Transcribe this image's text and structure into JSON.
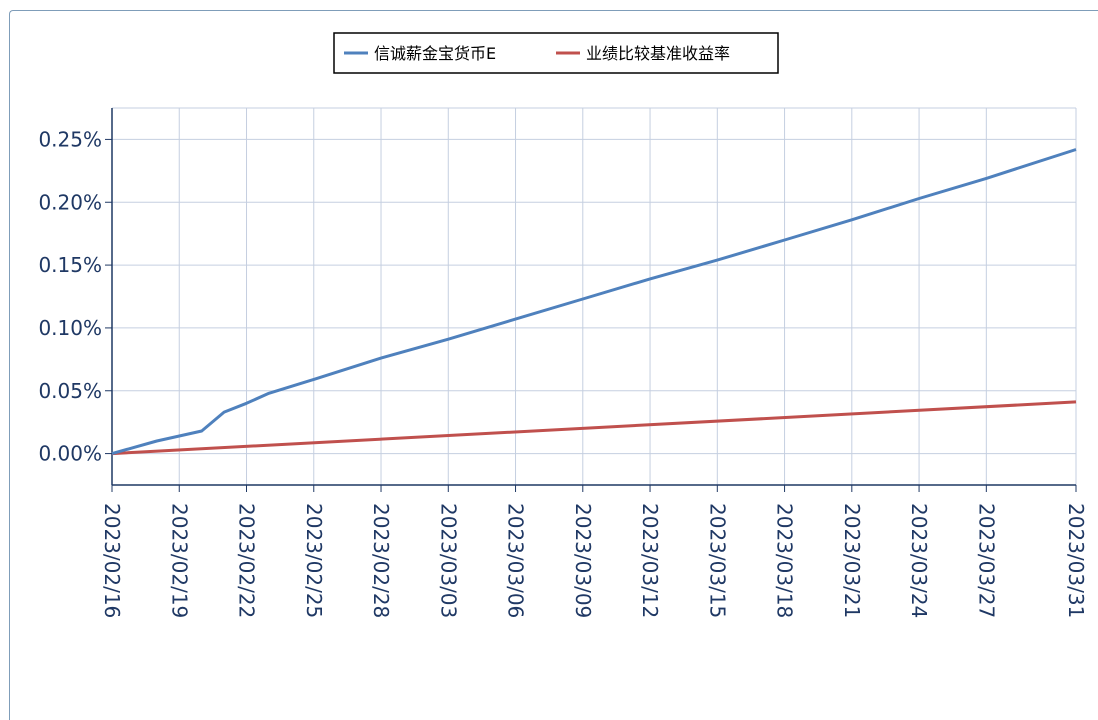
{
  "chart_data": {
    "type": "line",
    "title": "",
    "xlabel": "",
    "ylabel": "",
    "x_ticks": [
      "2023/02/16",
      "2023/02/19",
      "2023/02/22",
      "2023/02/25",
      "2023/02/28",
      "2023/03/03",
      "2023/03/06",
      "2023/03/09",
      "2023/03/12",
      "2023/03/15",
      "2023/03/18",
      "2023/03/21",
      "2023/03/24",
      "2023/03/27",
      "2023/03/31"
    ],
    "y_ticks": [
      "0.00%",
      "0.05%",
      "0.10%",
      "0.15%",
      "0.20%",
      "0.25%"
    ],
    "ylim": [
      -0.00025,
      0.00275
    ],
    "xlim": [
      "2023/02/16",
      "2023/03/31"
    ],
    "grid": true,
    "legend_position": "top-center",
    "series": [
      {
        "name": "信诚薪金宝货币E",
        "color": "#4f81bd",
        "points": [
          {
            "x": "2023/02/16",
            "y": 0.0
          },
          {
            "x": "2023/02/17",
            "y": 5e-05
          },
          {
            "x": "2023/02/18",
            "y": 0.0001
          },
          {
            "x": "2023/02/19",
            "y": 0.00014
          },
          {
            "x": "2023/02/20",
            "y": 0.00018
          },
          {
            "x": "2023/02/21",
            "y": 0.00033
          },
          {
            "x": "2023/02/22",
            "y": 0.0004
          },
          {
            "x": "2023/02/23",
            "y": 0.00048
          },
          {
            "x": "2023/02/25",
            "y": 0.00059
          },
          {
            "x": "2023/02/28",
            "y": 0.00076
          },
          {
            "x": "2023/03/03",
            "y": 0.00091
          },
          {
            "x": "2023/03/06",
            "y": 0.00107
          },
          {
            "x": "2023/03/09",
            "y": 0.00123
          },
          {
            "x": "2023/03/12",
            "y": 0.00139
          },
          {
            "x": "2023/03/15",
            "y": 0.00154
          },
          {
            "x": "2023/03/18",
            "y": 0.0017
          },
          {
            "x": "2023/03/21",
            "y": 0.00186
          },
          {
            "x": "2023/03/24",
            "y": 0.00203
          },
          {
            "x": "2023/03/27",
            "y": 0.00219
          },
          {
            "x": "2023/03/31",
            "y": 0.00242
          }
        ]
      },
      {
        "name": "业绩比较基准收益率",
        "color": "#c0504d",
        "points": [
          {
            "x": "2023/02/16",
            "y": 0.0
          },
          {
            "x": "2023/03/31",
            "y": 0.000411
          }
        ]
      }
    ]
  }
}
